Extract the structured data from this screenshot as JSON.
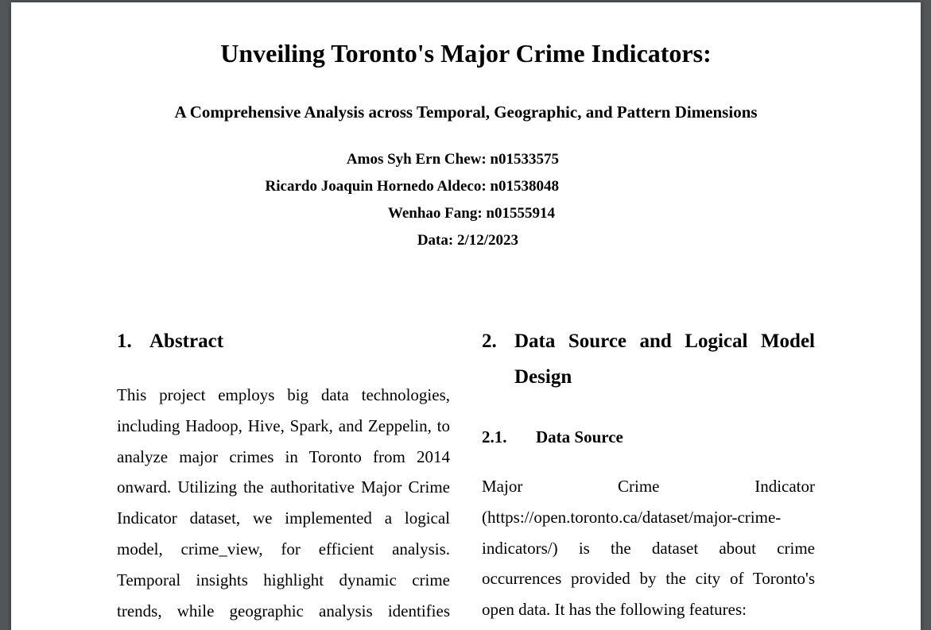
{
  "paper": {
    "title": "Unveiling Toronto's Major Crime Indicators:",
    "subtitle": "A Comprehensive Analysis across Temporal, Geographic, and Pattern Dimensions",
    "authors": [
      "Amos Syh Ern Chew: n01533575",
      "Ricardo Joaquin Hornedo Aldeco: n01538048",
      "Wenhao Fang: n01555914"
    ],
    "date_line": "Data: 2/12/2023"
  },
  "sections": {
    "abstract": {
      "number": "1.",
      "heading": "Abstract",
      "text": "This project employs big data technologies, including Hadoop, Hive, Spark, and Zeppelin, to analyze major crimes in Toronto from 2014 onward. Utilizing the authoritative Major Crime Indicator dataset, we implemented a logical model, crime_view, for efficient analysis. Temporal insights highlight dynamic crime trends, while geographic analysis identifies hotspots"
    },
    "data_source": {
      "number": "2.",
      "heading": "Data Source and Logical Model Design",
      "sub_number": "2.1.",
      "sub_heading": "Data Source",
      "text": "Major Crime Indicator (https://open.toronto.ca/dataset/major-crime-indicators/) is the dataset about crime occurrences provided by the city of Toronto's open data. It has the following features:"
    }
  }
}
